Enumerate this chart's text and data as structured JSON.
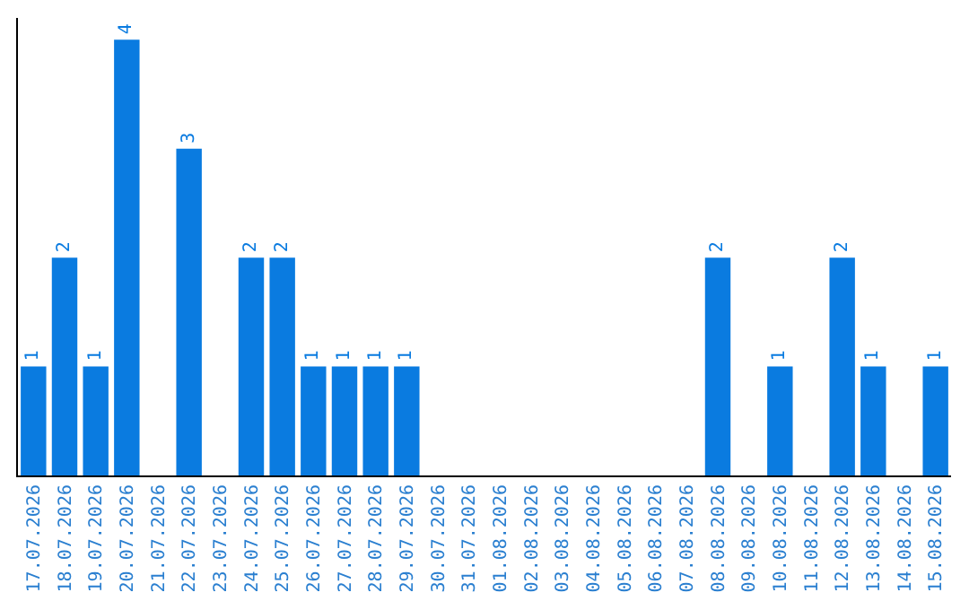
{
  "chart_data": {
    "type": "bar",
    "categories": [
      "17.07.2026",
      "18.07.2026",
      "19.07.2026",
      "20.07.2026",
      "21.07.2026",
      "22.07.2026",
      "23.07.2026",
      "24.07.2026",
      "25.07.2026",
      "26.07.2026",
      "27.07.2026",
      "28.07.2026",
      "29.07.2026",
      "30.07.2026",
      "31.07.2026",
      "01.08.2026",
      "02.08.2026",
      "03.08.2026",
      "04.08.2026",
      "05.08.2026",
      "06.08.2026",
      "07.08.2026",
      "08.08.2026",
      "09.08.2026",
      "10.08.2026",
      "11.08.2026",
      "12.08.2026",
      "13.08.2026",
      "14.08.2026",
      "15.08.2026"
    ],
    "values": [
      1,
      2,
      1,
      4,
      0,
      3,
      0,
      2,
      2,
      1,
      1,
      1,
      1,
      0,
      0,
      0,
      0,
      0,
      0,
      0,
      0,
      0,
      2,
      0,
      1,
      0,
      2,
      1,
      0,
      1
    ],
    "value_labels": [
      "1",
      "2",
      "1",
      "4",
      null,
      "3",
      null,
      "2",
      "2",
      "1",
      "1",
      "1",
      "1",
      null,
      null,
      null,
      null,
      null,
      null,
      null,
      null,
      null,
      "2",
      null,
      "1",
      null,
      "2",
      "1",
      null,
      "1"
    ],
    "color": "#0a7be0",
    "ylim": [
      0,
      4.2
    ],
    "tick_labels": "x",
    "legend": false
  }
}
